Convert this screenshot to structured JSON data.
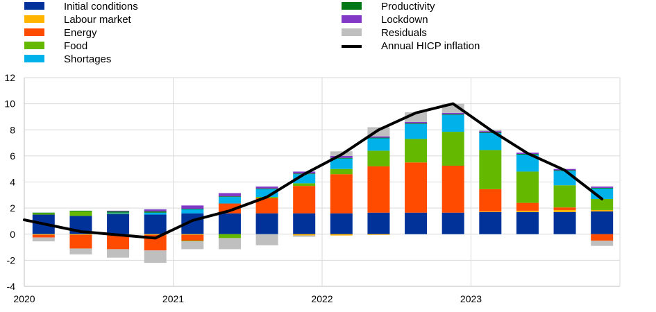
{
  "colors": {
    "initial_conditions": "#003299",
    "labour_market": "#ffb400",
    "energy": "#ff4b00",
    "food": "#65b800",
    "shortages": "#00b1ea",
    "productivity": "#007816",
    "lockdown": "#8139c6",
    "residuals": "#bfbfbf",
    "line": "#000000"
  },
  "chart_data": {
    "type": "bar",
    "stacked": true,
    "title": "",
    "xlabel": "",
    "ylabel": "",
    "ylim": [
      -4,
      12
    ],
    "y_ticks": [
      -4,
      -2,
      0,
      2,
      4,
      6,
      8,
      10,
      12
    ],
    "x_tick_labels": [
      "2020",
      "2021",
      "2022",
      "2023"
    ],
    "grid": true,
    "legend_position": "top",
    "categories": [
      "2020 Q1",
      "2020 Q2",
      "2020 Q3",
      "2020 Q4",
      "2021 Q1",
      "2021 Q2",
      "2021 Q3",
      "2021 Q4",
      "2022 Q1",
      "2022 Q2",
      "2022 Q3",
      "2022 Q4",
      "2023 Q1",
      "2023 Q2",
      "2023 Q3",
      "2023 Q4"
    ],
    "series": [
      {
        "name": "Initial conditions",
        "key": "initial_conditions",
        "values": [
          1.5,
          1.4,
          1.55,
          1.5,
          1.6,
          1.6,
          1.6,
          1.6,
          1.6,
          1.65,
          1.65,
          1.65,
          1.7,
          1.7,
          1.7,
          1.75
        ]
      },
      {
        "name": "Labour market",
        "key": "labour_market",
        "values": [
          -0.05,
          -0.05,
          -0.05,
          -0.05,
          -0.05,
          0.0,
          0.0,
          -0.1,
          -0.1,
          -0.05,
          0.0,
          0.0,
          0.05,
          0.1,
          0.15,
          0.1
        ]
      },
      {
        "name": "Energy",
        "key": "energy",
        "values": [
          -0.2,
          -1.05,
          -1.1,
          -1.2,
          -0.45,
          0.75,
          1.15,
          2.1,
          3.0,
          3.55,
          3.85,
          3.6,
          1.7,
          0.6,
          0.2,
          -0.5
        ]
      },
      {
        "name": "Food",
        "key": "food",
        "values": [
          0.1,
          0.35,
          0.05,
          0.0,
          -0.05,
          -0.3,
          0.1,
          0.2,
          0.4,
          1.2,
          1.8,
          2.6,
          3.0,
          2.4,
          1.7,
          0.85
        ]
      },
      {
        "name": "Shortages",
        "key": "shortages",
        "values": [
          0.0,
          0.0,
          0.05,
          0.15,
          0.3,
          0.5,
          0.6,
          0.7,
          0.8,
          0.95,
          1.15,
          1.3,
          1.3,
          1.3,
          1.1,
          0.8
        ]
      },
      {
        "name": "Productivity",
        "key": "productivity",
        "values": [
          0.05,
          0.05,
          0.1,
          0.1,
          0.05,
          0.05,
          0.05,
          0.05,
          0.05,
          0.05,
          0.05,
          0.05,
          0.05,
          0.05,
          0.05,
          0.05
        ]
      },
      {
        "name": "Lockdown",
        "key": "lockdown",
        "values": [
          0.0,
          0.0,
          0.05,
          0.15,
          0.25,
          0.25,
          0.15,
          0.15,
          0.15,
          0.1,
          0.1,
          0.1,
          0.1,
          0.1,
          0.1,
          0.1
        ]
      },
      {
        "name": "Residuals",
        "key": "residuals",
        "values": [
          -0.3,
          -0.45,
          -0.65,
          -0.95,
          -0.6,
          -0.85,
          -0.85,
          -0.1,
          0.35,
          0.7,
          0.75,
          0.7,
          0.1,
          0.0,
          0.0,
          -0.4
        ]
      }
    ],
    "line": {
      "name": "Annual HICP inflation",
      "key": "line",
      "values": [
        1.1,
        0.2,
        -0.05,
        -0.3,
        1.05,
        1.8,
        2.85,
        4.6,
        6.1,
        8.0,
        9.3,
        10.0,
        8.0,
        6.2,
        4.9,
        2.7
      ]
    }
  }
}
